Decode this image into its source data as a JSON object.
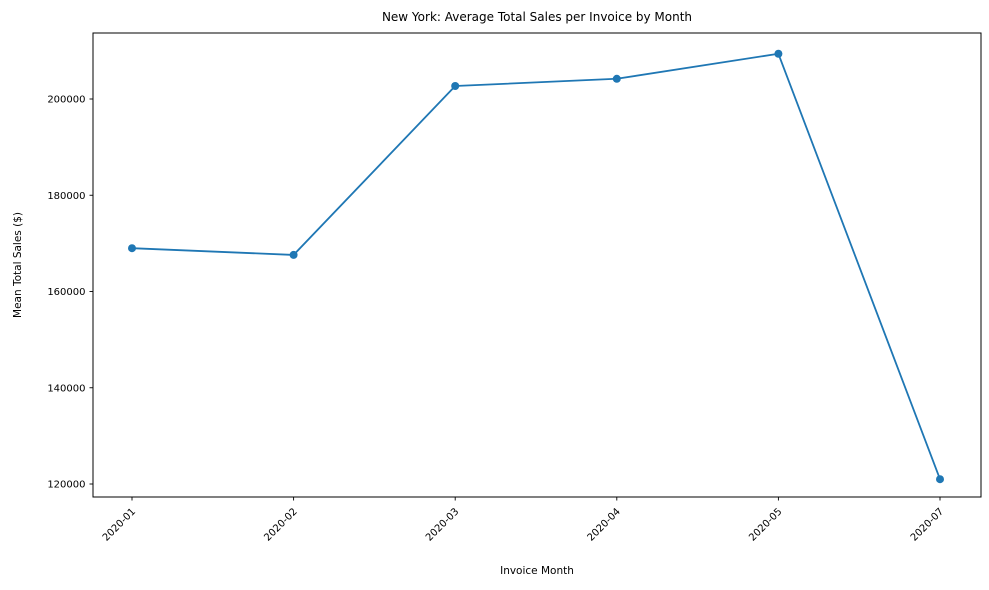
{
  "chart_data": {
    "type": "line",
    "title": "New York: Average Total Sales per Invoice by Month",
    "xlabel": "Invoice Month",
    "ylabel": "Mean Total Sales ($)",
    "categories": [
      "2020-01",
      "2020-02",
      "2020-03",
      "2020-04",
      "2020-05",
      "2020-07"
    ],
    "values": [
      169000,
      167600,
      202700,
      204200,
      209400,
      121000
    ],
    "yticks": [
      120000,
      140000,
      160000,
      180000,
      200000
    ],
    "ylim": [
      117300,
      213714
    ],
    "x_tick_rotation_deg": 45,
    "grid": false,
    "legend_position": "none",
    "line_color": "#1f77b4",
    "marker": "o",
    "axes_color": "#000000",
    "background_color": "#ffffff"
  }
}
